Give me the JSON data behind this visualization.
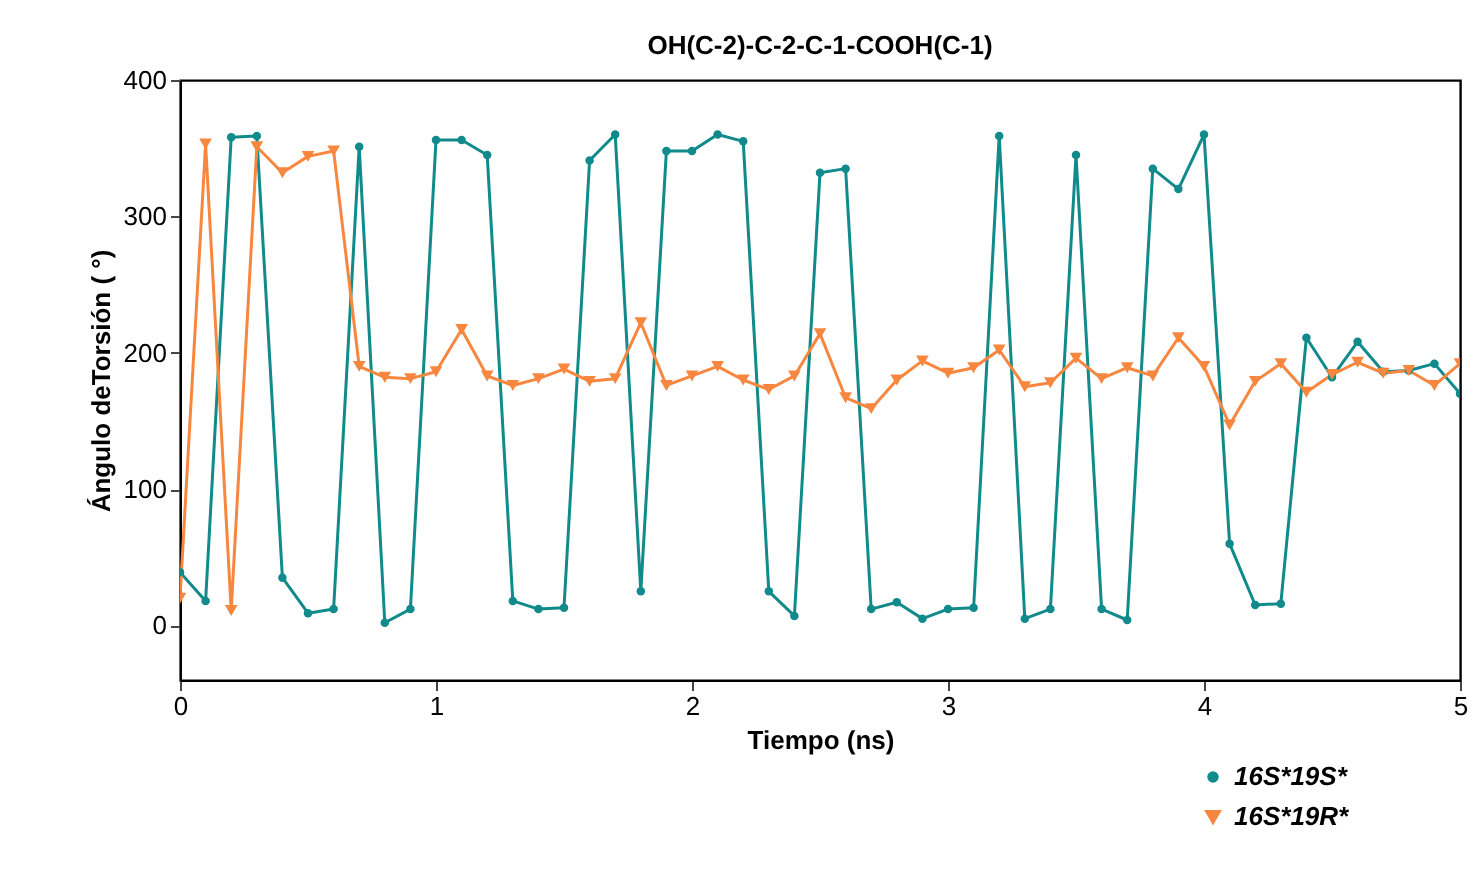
{
  "chart_data": {
    "type": "line",
    "title": "OH(C-2)-C-2-C-1-COOH(C-1)",
    "xlabel": "Tiempo (ns)",
    "ylabel": "Ángulo deTorsión ( °)",
    "x": [
      0,
      0.1,
      0.2,
      0.3,
      0.4,
      0.5,
      0.6,
      0.7,
      0.8,
      0.9,
      1.0,
      1.1,
      1.2,
      1.3,
      1.4,
      1.5,
      1.6,
      1.7,
      1.8,
      1.9,
      2.0,
      2.1,
      2.2,
      2.3,
      2.4,
      2.5,
      2.6,
      2.7,
      2.8,
      2.9,
      3.0,
      3.1,
      3.2,
      3.3,
      3.4,
      3.5,
      3.6,
      3.7,
      3.8,
      3.9,
      4.0,
      4.1,
      4.2,
      4.3,
      4.4,
      4.5,
      4.6,
      4.7,
      4.8,
      4.9,
      5.0
    ],
    "series": [
      {
        "name": "16S*19S*",
        "color": "#108a8a",
        "marker": "circle",
        "values": [
          39,
          18,
          358,
          359,
          35,
          9,
          12,
          351,
          2,
          12,
          356,
          356,
          345,
          18,
          12,
          13,
          341,
          360,
          25,
          348,
          348,
          360,
          355,
          25,
          7,
          332,
          335,
          12,
          17,
          5,
          12,
          13,
          359,
          5,
          12,
          345,
          12,
          4,
          335,
          320,
          360,
          60,
          15,
          16,
          211,
          182,
          208,
          186,
          187,
          192,
          170
        ]
      },
      {
        "name": "16S*19R*",
        "color": "#f7873f",
        "marker": "triangle",
        "values": [
          20,
          353,
          11,
          351,
          332,
          344,
          348,
          190,
          182,
          181,
          186,
          217,
          183,
          176,
          181,
          188,
          179,
          181,
          222,
          176,
          183,
          190,
          180,
          173,
          183,
          214,
          167,
          159,
          180,
          194,
          185,
          189,
          202,
          175,
          178,
          196,
          181,
          189,
          183,
          211,
          190,
          147,
          179,
          192,
          171,
          184,
          193,
          185,
          187,
          176,
          192
        ]
      }
    ],
    "xlim": [
      0,
      5
    ],
    "xticks": [
      0,
      1,
      2,
      3,
      4,
      5
    ],
    "ylim": [
      -40,
      400
    ],
    "yticks": [
      0,
      100,
      200,
      300,
      400
    ],
    "legend": "bottom right",
    "grid": false,
    "line_style": "solid"
  }
}
